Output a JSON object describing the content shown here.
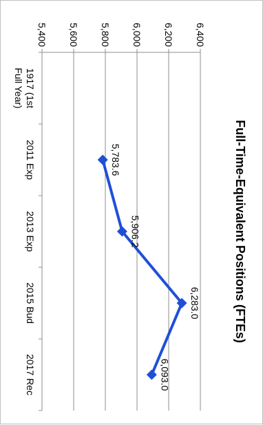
{
  "chart_data": {
    "type": "line",
    "title": "Full-Time-Equivalent Positions (FTEs)",
    "categories": [
      "1917 (1st Full Year)",
      "2011 Exp",
      "2013 Exp",
      "2015 Bud",
      "2017 Rec"
    ],
    "category_lines": [
      [
        "1917 (1st",
        "Full Year)"
      ],
      [
        "2011 Exp"
      ],
      [
        "2013 Exp"
      ],
      [
        "2015 Bud"
      ],
      [
        "2017 Rec"
      ]
    ],
    "values": [
      null,
      5783.6,
      5906.2,
      6283.0,
      6093.0
    ],
    "data_labels": [
      "",
      "5,783.6",
      "5,906.2",
      "6,283.0",
      "6,093.0"
    ],
    "ylim": [
      5400,
      6400
    ],
    "yticks": [
      5400,
      5600,
      5800,
      6000,
      6200,
      6400
    ],
    "ytick_labels": [
      "5,400",
      "5,600",
      "5,800",
      "6,000",
      "6,200",
      "6,400"
    ],
    "grid": true,
    "legend": "none",
    "orientation": "rotated 90 degrees clockwise",
    "colors": {
      "line": "#1f4fd8",
      "grid": "#8c8c8c",
      "text": "#000000"
    }
  }
}
